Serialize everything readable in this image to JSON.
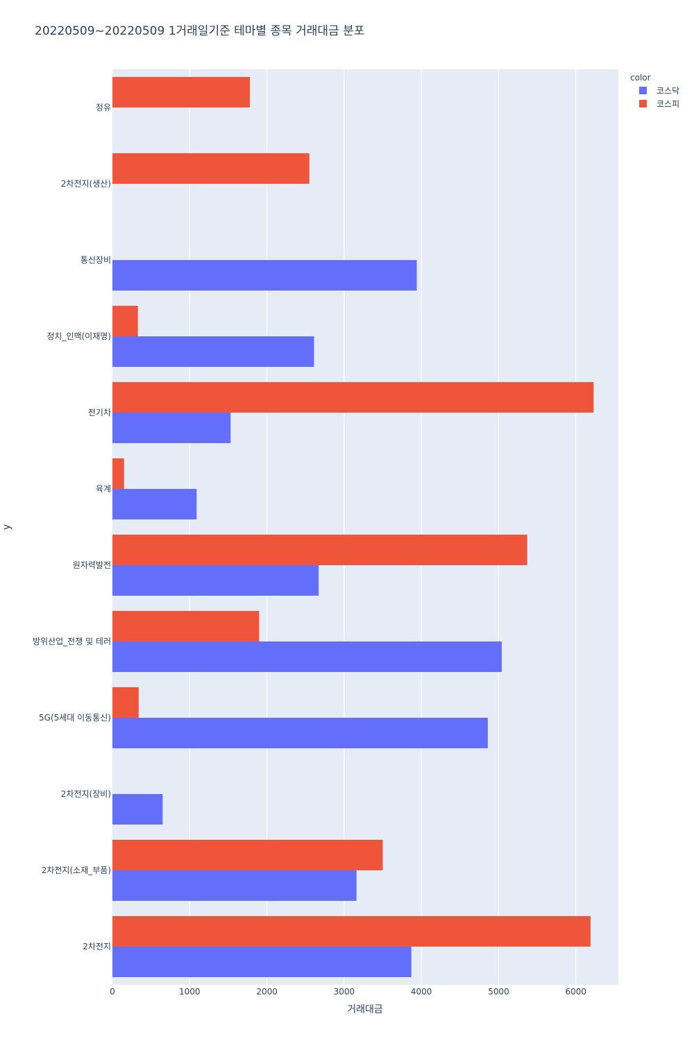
{
  "chart_data": {
    "type": "bar",
    "orientation": "horizontal",
    "barmode": "group",
    "title": "20220509~20220509 1거래일기준 테마별 종목 거래대금 분포",
    "xlabel": "거래대금",
    "ylabel": "y",
    "xlim": [
      0,
      6550
    ],
    "xticks": [
      0,
      1000,
      2000,
      3000,
      4000,
      5000,
      6000
    ],
    "xtick_labels": [
      "0",
      "1000",
      "2000",
      "3000",
      "4000",
      "5000",
      "6000"
    ],
    "grid": true,
    "legend": {
      "title": "color",
      "position": "top-right"
    },
    "categories": [
      "2차전지",
      "2차전지(소재_부품)",
      "2차전지(장비)",
      "5G(5세대 이동통신)",
      "방위산업_전쟁 및 테러",
      "원자력발전",
      "육계",
      "전기차",
      "정치_인맥(이재명)",
      "통신장비",
      "2차전지(생산)",
      "정유"
    ],
    "series": [
      {
        "name": "코스닥",
        "color": "#636efa",
        "values": [
          3870,
          3160,
          650,
          4860,
          5040,
          2670,
          1090,
          1530,
          2610,
          3940,
          null,
          null
        ]
      },
      {
        "name": "코스피",
        "color": "#ef553b",
        "values": [
          6190,
          3500,
          null,
          340,
          1900,
          5370,
          150,
          6230,
          330,
          null,
          2550,
          1780
        ]
      }
    ]
  }
}
